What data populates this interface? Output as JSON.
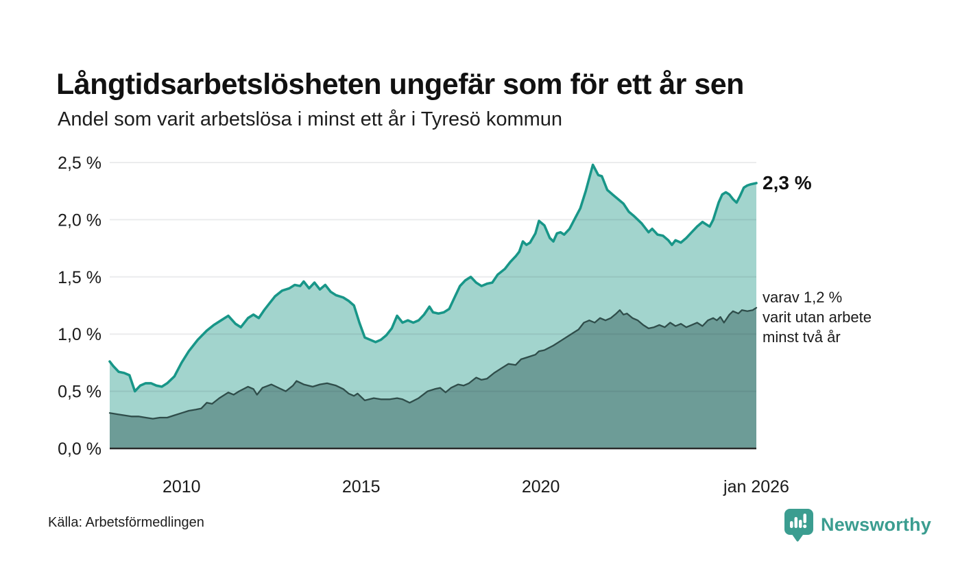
{
  "header": {
    "title": "Långtidsarbetslösheten ungefär som för ett år sen",
    "subtitle": "Andel som varit arbetslösa i minst ett år i Tyresö kommun"
  },
  "annotations": {
    "total_end_label": "2,3 %",
    "secondary_end_lines": [
      "varav 1,2 %",
      "varit utan arbete",
      "minst två år"
    ]
  },
  "footer": {
    "source": "Källa: Arbetsförmedlingen",
    "brand": "Newsworthy"
  },
  "colors": {
    "accent_teal": "#3b9d90",
    "total_line": "#189688",
    "total_fill": "#a2d4cd",
    "secondary_line": "#2f4d4a",
    "secondary_fill": "#6d9c97",
    "gridline": "#e9e9ec",
    "axis_line": "#2b2b2b",
    "text": "#1a1a1a"
  },
  "chart_data": {
    "type": "area",
    "title": "Långtidsarbetslösheten ungefär som för ett år sen",
    "subtitle": "Andel som varit arbetslösa i minst ett år i Tyresö kommun",
    "unit": "%",
    "x_axis": {
      "range": [
        2008,
        2026
      ],
      "ticks": [
        {
          "label": "2010",
          "year": 2010
        },
        {
          "label": "2015",
          "year": 2015
        },
        {
          "label": "2020",
          "year": 2020
        },
        {
          "label": "jan 2026",
          "year": 2026
        }
      ]
    },
    "y_axis": {
      "range": [
        0,
        2.5
      ],
      "ticks": [
        {
          "label": "0,0 %",
          "value": 0
        },
        {
          "label": "0,5 %",
          "value": 0.5
        },
        {
          "label": "1,0 %",
          "value": 1.0
        },
        {
          "label": "1,5 %",
          "value": 1.5
        },
        {
          "label": "2,0 %",
          "value": 2.0
        },
        {
          "label": "2,5 %",
          "value": 2.5
        }
      ],
      "grid": true
    },
    "legend": "none",
    "series": [
      {
        "name": "arbetslösa i minst ett år",
        "end_label": "2,3 %",
        "end_value": 2.3,
        "line_color": "#189688",
        "fill_color": "#a2d4cd",
        "points": [
          [
            2008.0,
            0.76
          ],
          [
            2008.1,
            0.72
          ],
          [
            2008.25,
            0.67
          ],
          [
            2008.4,
            0.66
          ],
          [
            2008.55,
            0.64
          ],
          [
            2008.7,
            0.5
          ],
          [
            2008.85,
            0.55
          ],
          [
            2009.0,
            0.57
          ],
          [
            2009.15,
            0.57
          ],
          [
            2009.3,
            0.55
          ],
          [
            2009.45,
            0.54
          ],
          [
            2009.6,
            0.57
          ],
          [
            2009.8,
            0.63
          ],
          [
            2010.0,
            0.75
          ],
          [
            2010.2,
            0.85
          ],
          [
            2010.45,
            0.95
          ],
          [
            2010.7,
            1.03
          ],
          [
            2010.9,
            1.08
          ],
          [
            2011.1,
            1.12
          ],
          [
            2011.3,
            1.16
          ],
          [
            2011.5,
            1.09
          ],
          [
            2011.65,
            1.06
          ],
          [
            2011.85,
            1.14
          ],
          [
            2012.0,
            1.17
          ],
          [
            2012.15,
            1.14
          ],
          [
            2012.3,
            1.21
          ],
          [
            2012.45,
            1.27
          ],
          [
            2012.6,
            1.33
          ],
          [
            2012.8,
            1.38
          ],
          [
            2013.0,
            1.4
          ],
          [
            2013.15,
            1.43
          ],
          [
            2013.3,
            1.42
          ],
          [
            2013.4,
            1.46
          ],
          [
            2013.55,
            1.4
          ],
          [
            2013.7,
            1.45
          ],
          [
            2013.85,
            1.39
          ],
          [
            2014.0,
            1.43
          ],
          [
            2014.15,
            1.37
          ],
          [
            2014.3,
            1.34
          ],
          [
            2014.5,
            1.32
          ],
          [
            2014.65,
            1.29
          ],
          [
            2014.8,
            1.25
          ],
          [
            2014.95,
            1.1
          ],
          [
            2015.1,
            0.97
          ],
          [
            2015.25,
            0.95
          ],
          [
            2015.4,
            0.93
          ],
          [
            2015.55,
            0.95
          ],
          [
            2015.7,
            0.99
          ],
          [
            2015.85,
            1.05
          ],
          [
            2016.0,
            1.16
          ],
          [
            2016.15,
            1.1
          ],
          [
            2016.3,
            1.12
          ],
          [
            2016.45,
            1.1
          ],
          [
            2016.6,
            1.12
          ],
          [
            2016.75,
            1.17
          ],
          [
            2016.9,
            1.24
          ],
          [
            2017.0,
            1.19
          ],
          [
            2017.15,
            1.18
          ],
          [
            2017.3,
            1.19
          ],
          [
            2017.45,
            1.22
          ],
          [
            2017.6,
            1.32
          ],
          [
            2017.75,
            1.42
          ],
          [
            2017.9,
            1.47
          ],
          [
            2018.05,
            1.5
          ],
          [
            2018.2,
            1.45
          ],
          [
            2018.35,
            1.42
          ],
          [
            2018.5,
            1.44
          ],
          [
            2018.65,
            1.45
          ],
          [
            2018.8,
            1.52
          ],
          [
            2019.0,
            1.57
          ],
          [
            2019.15,
            1.63
          ],
          [
            2019.3,
            1.68
          ],
          [
            2019.4,
            1.72
          ],
          [
            2019.5,
            1.81
          ],
          [
            2019.6,
            1.78
          ],
          [
            2019.7,
            1.8
          ],
          [
            2019.85,
            1.88
          ],
          [
            2019.95,
            1.99
          ],
          [
            2020.1,
            1.95
          ],
          [
            2020.25,
            1.84
          ],
          [
            2020.35,
            1.81
          ],
          [
            2020.45,
            1.88
          ],
          [
            2020.55,
            1.89
          ],
          [
            2020.65,
            1.87
          ],
          [
            2020.8,
            1.92
          ],
          [
            2020.95,
            2.01
          ],
          [
            2021.1,
            2.1
          ],
          [
            2021.25,
            2.25
          ],
          [
            2021.45,
            2.48
          ],
          [
            2021.6,
            2.39
          ],
          [
            2021.7,
            2.38
          ],
          [
            2021.85,
            2.26
          ],
          [
            2022.0,
            2.22
          ],
          [
            2022.15,
            2.18
          ],
          [
            2022.3,
            2.14
          ],
          [
            2022.45,
            2.07
          ],
          [
            2022.6,
            2.03
          ],
          [
            2022.8,
            1.97
          ],
          [
            2023.0,
            1.89
          ],
          [
            2023.1,
            1.92
          ],
          [
            2023.25,
            1.87
          ],
          [
            2023.4,
            1.86
          ],
          [
            2023.55,
            1.82
          ],
          [
            2023.65,
            1.78
          ],
          [
            2023.75,
            1.82
          ],
          [
            2023.9,
            1.8
          ],
          [
            2024.05,
            1.84
          ],
          [
            2024.2,
            1.89
          ],
          [
            2024.35,
            1.94
          ],
          [
            2024.5,
            1.98
          ],
          [
            2024.6,
            1.96
          ],
          [
            2024.7,
            1.94
          ],
          [
            2024.8,
            2.0
          ],
          [
            2024.95,
            2.15
          ],
          [
            2025.05,
            2.22
          ],
          [
            2025.15,
            2.24
          ],
          [
            2025.25,
            2.22
          ],
          [
            2025.35,
            2.18
          ],
          [
            2025.45,
            2.15
          ],
          [
            2025.55,
            2.21
          ],
          [
            2025.65,
            2.28
          ],
          [
            2025.75,
            2.3
          ],
          [
            2025.85,
            2.31
          ],
          [
            2026.0,
            2.32
          ]
        ]
      },
      {
        "name": "varav varit utan arbete minst två år",
        "end_label": "varav 1,2 % varit utan arbete minst två år",
        "end_value": 1.2,
        "line_color": "#2f4d4a",
        "fill_color": "#6d9c97",
        "points": [
          [
            2008.0,
            0.31
          ],
          [
            2008.2,
            0.3
          ],
          [
            2008.4,
            0.29
          ],
          [
            2008.6,
            0.28
          ],
          [
            2008.8,
            0.28
          ],
          [
            2009.0,
            0.27
          ],
          [
            2009.2,
            0.26
          ],
          [
            2009.4,
            0.27
          ],
          [
            2009.6,
            0.27
          ],
          [
            2009.8,
            0.29
          ],
          [
            2010.0,
            0.31
          ],
          [
            2010.2,
            0.33
          ],
          [
            2010.4,
            0.34
          ],
          [
            2010.55,
            0.35
          ],
          [
            2010.7,
            0.4
          ],
          [
            2010.85,
            0.39
          ],
          [
            2011.05,
            0.44
          ],
          [
            2011.3,
            0.49
          ],
          [
            2011.45,
            0.47
          ],
          [
            2011.6,
            0.5
          ],
          [
            2011.85,
            0.54
          ],
          [
            2012.0,
            0.52
          ],
          [
            2012.1,
            0.47
          ],
          [
            2012.25,
            0.53
          ],
          [
            2012.5,
            0.56
          ],
          [
            2012.7,
            0.53
          ],
          [
            2012.9,
            0.5
          ],
          [
            2013.1,
            0.55
          ],
          [
            2013.2,
            0.59
          ],
          [
            2013.4,
            0.56
          ],
          [
            2013.65,
            0.54
          ],
          [
            2013.85,
            0.56
          ],
          [
            2014.05,
            0.57
          ],
          [
            2014.3,
            0.55
          ],
          [
            2014.5,
            0.52
          ],
          [
            2014.65,
            0.48
          ],
          [
            2014.8,
            0.46
          ],
          [
            2014.9,
            0.48
          ],
          [
            2015.1,
            0.42
          ],
          [
            2015.35,
            0.44
          ],
          [
            2015.55,
            0.43
          ],
          [
            2015.8,
            0.43
          ],
          [
            2016.0,
            0.44
          ],
          [
            2016.15,
            0.43
          ],
          [
            2016.35,
            0.4
          ],
          [
            2016.6,
            0.44
          ],
          [
            2016.85,
            0.5
          ],
          [
            2017.05,
            0.52
          ],
          [
            2017.2,
            0.53
          ],
          [
            2017.35,
            0.49
          ],
          [
            2017.5,
            0.53
          ],
          [
            2017.7,
            0.56
          ],
          [
            2017.85,
            0.55
          ],
          [
            2018.0,
            0.57
          ],
          [
            2018.2,
            0.62
          ],
          [
            2018.35,
            0.6
          ],
          [
            2018.5,
            0.61
          ],
          [
            2018.7,
            0.66
          ],
          [
            2018.9,
            0.7
          ],
          [
            2019.1,
            0.74
          ],
          [
            2019.3,
            0.73
          ],
          [
            2019.45,
            0.78
          ],
          [
            2019.65,
            0.8
          ],
          [
            2019.85,
            0.82
          ],
          [
            2019.95,
            0.85
          ],
          [
            2020.1,
            0.86
          ],
          [
            2020.35,
            0.9
          ],
          [
            2020.55,
            0.94
          ],
          [
            2020.7,
            0.97
          ],
          [
            2020.9,
            1.01
          ],
          [
            2021.05,
            1.04
          ],
          [
            2021.2,
            1.1
          ],
          [
            2021.35,
            1.12
          ],
          [
            2021.5,
            1.1
          ],
          [
            2021.65,
            1.14
          ],
          [
            2021.8,
            1.12
          ],
          [
            2021.95,
            1.14
          ],
          [
            2022.1,
            1.18
          ],
          [
            2022.2,
            1.21
          ],
          [
            2022.3,
            1.17
          ],
          [
            2022.4,
            1.18
          ],
          [
            2022.55,
            1.14
          ],
          [
            2022.7,
            1.12
          ],
          [
            2022.85,
            1.08
          ],
          [
            2023.0,
            1.05
          ],
          [
            2023.15,
            1.06
          ],
          [
            2023.3,
            1.08
          ],
          [
            2023.45,
            1.06
          ],
          [
            2023.6,
            1.1
          ],
          [
            2023.75,
            1.07
          ],
          [
            2023.9,
            1.09
          ],
          [
            2024.05,
            1.06
          ],
          [
            2024.2,
            1.08
          ],
          [
            2024.35,
            1.1
          ],
          [
            2024.5,
            1.07
          ],
          [
            2024.65,
            1.12
          ],
          [
            2024.8,
            1.14
          ],
          [
            2024.9,
            1.12
          ],
          [
            2025.0,
            1.15
          ],
          [
            2025.1,
            1.1
          ],
          [
            2025.25,
            1.17
          ],
          [
            2025.35,
            1.2
          ],
          [
            2025.5,
            1.18
          ],
          [
            2025.6,
            1.21
          ],
          [
            2025.75,
            1.2
          ],
          [
            2025.9,
            1.21
          ],
          [
            2026.0,
            1.23
          ]
        ]
      }
    ]
  }
}
